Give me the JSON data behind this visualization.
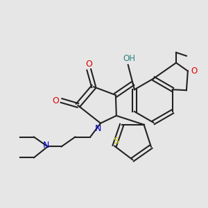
{
  "background_color": "#e6e6e6",
  "figsize": [
    3.0,
    3.0
  ],
  "dpi": 100,
  "bond_color": "#222222",
  "bond_lw": 1.5,
  "atom_colors": {
    "O": "#dd0000",
    "N": "#0000cc",
    "S": "#cccc00",
    "OH_H": "#2a8080",
    "C": "#222222"
  }
}
